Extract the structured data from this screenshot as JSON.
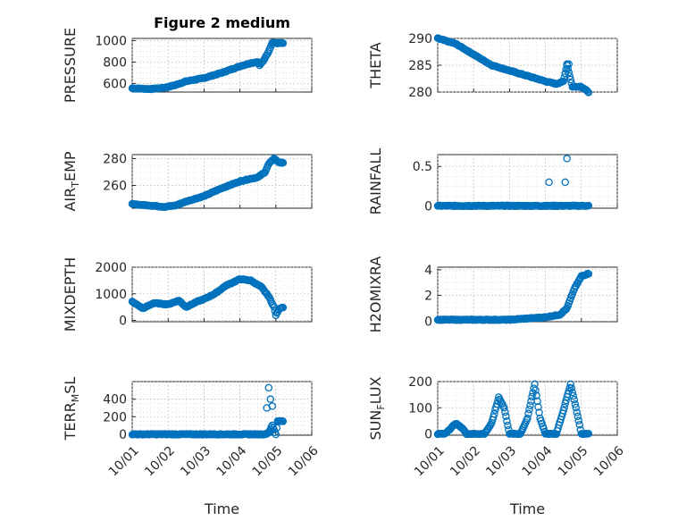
{
  "chart_data": [
    {
      "id": "pressure",
      "type": "scatter",
      "title": "Figure 2 medium",
      "ylabel": "PRESSURE",
      "ylabel_sub": "",
      "ylabel_tail": "",
      "ylim": [
        520,
        1020
      ],
      "yticks": [
        600,
        800,
        1000
      ],
      "yticklabels": [
        "600",
        "800",
        "1000"
      ],
      "xlim_days": [
        0,
        5
      ],
      "xticklabels": [],
      "xlabel": "",
      "marker_color": "#0072BD",
      "grid": true,
      "keypoints": [
        [
          0,
          555
        ],
        [
          0.5,
          548
        ],
        [
          0.9,
          560
        ],
        [
          1.2,
          585
        ],
        [
          1.5,
          620
        ],
        [
          2,
          650
        ],
        [
          2.5,
          700
        ],
        [
          3,
          760
        ],
        [
          3.3,
          790
        ],
        [
          3.5,
          800
        ],
        [
          3.55,
          770
        ],
        [
          3.65,
          810
        ],
        [
          3.8,
          900
        ],
        [
          3.9,
          980
        ],
        [
          4,
          975
        ],
        [
          4.1,
          975
        ],
        [
          4.2,
          975
        ]
      ]
    },
    {
      "id": "theta",
      "type": "scatter",
      "title": "",
      "ylabel": "THETA",
      "ylabel_sub": "",
      "ylabel_tail": "",
      "ylim": [
        280,
        290
      ],
      "yticks": [
        280,
        285,
        290
      ],
      "yticklabels": [
        "280",
        "285",
        "290"
      ],
      "xlim_days": [
        0,
        5
      ],
      "xticklabels": [],
      "xlabel": "",
      "marker_color": "#0072BD",
      "grid": true,
      "keypoints": [
        [
          0,
          290
        ],
        [
          0.5,
          289
        ],
        [
          1,
          287
        ],
        [
          1.5,
          285
        ],
        [
          2,
          284
        ],
        [
          2.5,
          283
        ],
        [
          3,
          282
        ],
        [
          3.3,
          281.5
        ],
        [
          3.5,
          282
        ],
        [
          3.6,
          285
        ],
        [
          3.75,
          281
        ],
        [
          4,
          281
        ],
        [
          4.2,
          280
        ]
      ],
      "outliers": [
        [
          3.55,
          283.5
        ],
        [
          3.6,
          285.2
        ],
        [
          3.65,
          285.2
        ]
      ]
    },
    {
      "id": "air-temp",
      "type": "scatter",
      "title": "",
      "ylabel": "AIR",
      "ylabel_sub": "T",
      "ylabel_tail": "EMP",
      "ylim": [
        243,
        283
      ],
      "yticks": [
        260,
        280
      ],
      "yticklabels": [
        "260",
        "280"
      ],
      "xlim_days": [
        0,
        5
      ],
      "xticklabels": [],
      "xlabel": "",
      "marker_color": "#0072BD",
      "grid": true,
      "keypoints": [
        [
          0,
          246
        ],
        [
          0.5,
          245
        ],
        [
          0.9,
          244
        ],
        [
          1.2,
          245
        ],
        [
          1.5,
          248
        ],
        [
          2,
          252
        ],
        [
          2.5,
          258
        ],
        [
          3,
          263
        ],
        [
          3.3,
          265
        ],
        [
          3.5,
          266
        ],
        [
          3.7,
          270
        ],
        [
          3.8,
          276
        ],
        [
          3.95,
          280
        ],
        [
          4.1,
          277
        ],
        [
          4.2,
          277
        ]
      ]
    },
    {
      "id": "rainfall",
      "type": "scatter",
      "title": "",
      "ylabel": "RAINFALL",
      "ylabel_sub": "",
      "ylabel_tail": "",
      "ylim": [
        -0.03,
        0.65
      ],
      "yticks": [
        0,
        0.5
      ],
      "yticklabels": [
        "0",
        "0.5"
      ],
      "xlim_days": [
        0,
        5
      ],
      "xticklabels": [],
      "xlabel": "",
      "marker_color": "#0072BD",
      "grid": true,
      "keypoints": [
        [
          0,
          0
        ],
        [
          4.2,
          0
        ]
      ],
      "outliers": [
        [
          3.1,
          0.3
        ],
        [
          3.55,
          0.3
        ],
        [
          3.6,
          0.6
        ]
      ]
    },
    {
      "id": "mixdepth",
      "type": "scatter",
      "title": "",
      "ylabel": "MIXDEPTH",
      "ylabel_sub": "",
      "ylabel_tail": "",
      "ylim": [
        -50,
        2000
      ],
      "yticks": [
        0,
        1000,
        2000
      ],
      "yticklabels": [
        "0",
        "1000",
        "2000"
      ],
      "xlim_days": [
        0,
        5
      ],
      "xticklabels": [],
      "xlabel": "",
      "marker_color": "#0072BD",
      "grid": true,
      "keypoints": [
        [
          0,
          700
        ],
        [
          0.3,
          450
        ],
        [
          0.6,
          650
        ],
        [
          1,
          600
        ],
        [
          1.3,
          750
        ],
        [
          1.5,
          500
        ],
        [
          1.8,
          700
        ],
        [
          2,
          800
        ],
        [
          2.3,
          1000
        ],
        [
          2.6,
          1300
        ],
        [
          3,
          1550
        ],
        [
          3.3,
          1500
        ],
        [
          3.6,
          1250
        ],
        [
          3.8,
          900
        ],
        [
          3.95,
          500
        ],
        [
          4,
          200
        ],
        [
          4.1,
          450
        ],
        [
          4.2,
          500
        ]
      ]
    },
    {
      "id": "h2omixra",
      "type": "scatter",
      "title": "",
      "ylabel": "H2OMIXRA",
      "ylabel_sub": "",
      "ylabel_tail": "",
      "ylim": [
        -0.05,
        4.2
      ],
      "yticks": [
        0,
        2,
        4
      ],
      "yticklabels": [
        "0",
        "2",
        "4"
      ],
      "xlim_days": [
        0,
        5
      ],
      "xticklabels": [],
      "xlabel": "",
      "marker_color": "#0072BD",
      "grid": true,
      "keypoints": [
        [
          0,
          0.1
        ],
        [
          2,
          0.1
        ],
        [
          2.5,
          0.2
        ],
        [
          3,
          0.3
        ],
        [
          3.4,
          0.5
        ],
        [
          3.6,
          1
        ],
        [
          3.8,
          2.5
        ],
        [
          4,
          3.5
        ],
        [
          4.2,
          3.7
        ]
      ]
    },
    {
      "id": "terr-msl",
      "type": "scatter",
      "title": "",
      "ylabel": "TERR",
      "ylabel_sub": "M",
      "ylabel_tail": "SL",
      "ylim": [
        -10,
        600
      ],
      "yticks": [
        0,
        200,
        400
      ],
      "yticklabels": [
        "0",
        "200",
        "400"
      ],
      "xlim_days": [
        0,
        5
      ],
      "xticklabels": [
        "10/01",
        "10/02",
        "10/03",
        "10/04",
        "10/05",
        "10/06"
      ],
      "xlabel": "Time",
      "marker_color": "#0072BD",
      "grid": true,
      "keypoints": [
        [
          0,
          0
        ],
        [
          3.7,
          0
        ],
        [
          3.8,
          20
        ],
        [
          3.9,
          100
        ],
        [
          4,
          0
        ],
        [
          4.05,
          150
        ],
        [
          4.2,
          150
        ]
      ],
      "outliers": [
        [
          3.75,
          300
        ],
        [
          3.8,
          530
        ],
        [
          3.85,
          400
        ],
        [
          3.9,
          320
        ]
      ]
    },
    {
      "id": "sun-flux",
      "type": "scatter",
      "title": "",
      "ylabel": "SUN",
      "ylabel_sub": "F",
      "ylabel_tail": "LUX",
      "ylim": [
        -5,
        200
      ],
      "yticks": [
        0,
        100,
        200
      ],
      "yticklabels": [
        "0",
        "100",
        "200"
      ],
      "xlim_days": [
        0,
        5
      ],
      "xticklabels": [
        "10/01",
        "10/02",
        "10/03",
        "10/04",
        "10/05",
        "10/06"
      ],
      "xlabel": "Time",
      "marker_color": "#0072BD",
      "grid": true,
      "keypoints": [
        [
          0,
          0
        ],
        [
          0.2,
          0
        ],
        [
          0.5,
          40
        ],
        [
          0.7,
          20
        ],
        [
          0.8,
          0
        ],
        [
          1.3,
          0
        ],
        [
          1.5,
          40
        ],
        [
          1.7,
          140
        ],
        [
          1.85,
          100
        ],
        [
          2,
          0
        ],
        [
          2.3,
          0
        ],
        [
          2.5,
          60
        ],
        [
          2.7,
          190
        ],
        [
          2.85,
          60
        ],
        [
          3,
          0
        ],
        [
          3.3,
          0
        ],
        [
          3.5,
          90
        ],
        [
          3.7,
          190
        ],
        [
          3.85,
          100
        ],
        [
          4,
          0
        ],
        [
          4.2,
          0
        ]
      ]
    }
  ]
}
